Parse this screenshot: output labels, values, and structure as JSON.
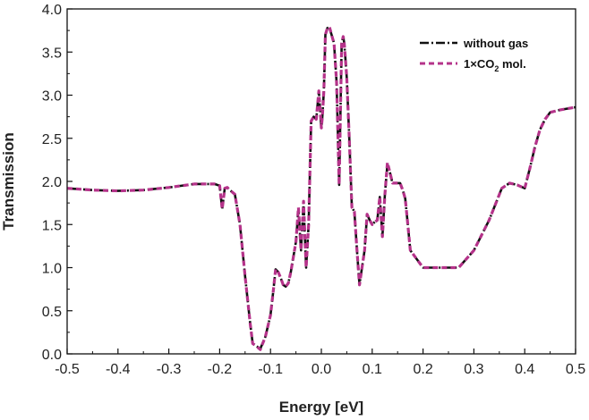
{
  "chart_data": {
    "type": "line",
    "title": "",
    "xlabel": "Energy [eV]",
    "ylabel": "Transmission",
    "xlim": [
      -0.5,
      0.5
    ],
    "ylim": [
      0.0,
      4.0
    ],
    "x_ticks": [
      "-0.5",
      "-0.4",
      "-0.3",
      "-0.2",
      "-0.1",
      "0.0",
      "0.1",
      "0.2",
      "0.3",
      "0.4",
      "0.5"
    ],
    "y_ticks": [
      "0.0",
      "0.5",
      "1.0",
      "1.5",
      "2.0",
      "2.5",
      "3.0",
      "3.5",
      "4.0"
    ],
    "grid": false,
    "legend_position": "top-right",
    "series": [
      {
        "name": "without gas",
        "legend_label": {
          "main": "without gas",
          "sub": "",
          "suffix": ""
        },
        "color": "#111111",
        "style": "dash-dot",
        "x": [
          -0.5,
          -0.45,
          -0.4,
          -0.35,
          -0.3,
          -0.25,
          -0.21,
          -0.2,
          -0.195,
          -0.19,
          -0.185,
          -0.18,
          -0.17,
          -0.16,
          -0.15,
          -0.14,
          -0.135,
          -0.13,
          -0.12,
          -0.11,
          -0.1,
          -0.095,
          -0.09,
          -0.085,
          -0.08,
          -0.075,
          -0.07,
          -0.065,
          -0.06,
          -0.05,
          -0.045,
          -0.04,
          -0.035,
          -0.03,
          -0.025,
          -0.02,
          -0.015,
          -0.01,
          -0.005,
          0.0,
          0.002,
          0.005,
          0.008,
          0.012,
          0.016,
          0.02,
          0.025,
          0.03,
          0.035,
          0.04,
          0.043,
          0.045,
          0.047,
          0.05,
          0.055,
          0.06,
          0.065,
          0.07,
          0.075,
          0.08,
          0.085,
          0.09,
          0.095,
          0.1,
          0.105,
          0.11,
          0.115,
          0.12,
          0.125,
          0.13,
          0.135,
          0.14,
          0.145,
          0.15,
          0.155,
          0.16,
          0.165,
          0.17,
          0.175,
          0.2,
          0.22,
          0.24,
          0.26,
          0.27,
          0.3,
          0.33,
          0.355,
          0.37,
          0.385,
          0.4,
          0.41,
          0.42,
          0.43,
          0.44,
          0.45,
          0.47,
          0.5
        ],
        "y": [
          1.92,
          1.9,
          1.89,
          1.9,
          1.93,
          1.97,
          1.97,
          1.95,
          1.68,
          1.92,
          1.93,
          1.9,
          1.85,
          1.5,
          0.9,
          0.35,
          0.12,
          0.1,
          0.06,
          0.2,
          0.45,
          0.7,
          0.98,
          0.95,
          0.88,
          0.8,
          0.78,
          0.82,
          0.95,
          1.3,
          1.68,
          1.2,
          1.75,
          1.0,
          1.5,
          2.7,
          2.75,
          2.72,
          3.05,
          2.62,
          2.75,
          3.05,
          3.7,
          3.78,
          3.78,
          3.7,
          3.6,
          3.15,
          1.96,
          3.6,
          3.68,
          3.6,
          3.45,
          3.2,
          2.5,
          1.7,
          1.65,
          1.2,
          0.8,
          1.0,
          1.2,
          1.62,
          1.55,
          1.5,
          1.53,
          1.55,
          1.82,
          1.36,
          1.85,
          2.2,
          2.1,
          1.98,
          1.98,
          1.98,
          1.98,
          1.9,
          1.8,
          1.5,
          1.2,
          1.0,
          1.0,
          1.0,
          1.0,
          1.0,
          1.2,
          1.55,
          1.92,
          1.98,
          1.96,
          1.92,
          2.15,
          2.4,
          2.6,
          2.72,
          2.8,
          2.83,
          2.86
        ]
      },
      {
        "name": "1×CO2 mol.",
        "legend_label": {
          "main": "1×CO",
          "sub": "2",
          "suffix": " mol."
        },
        "color": "#b5338a",
        "style": "dash",
        "x": [
          -0.5,
          -0.45,
          -0.4,
          -0.35,
          -0.3,
          -0.25,
          -0.21,
          -0.2,
          -0.195,
          -0.19,
          -0.185,
          -0.18,
          -0.17,
          -0.16,
          -0.15,
          -0.14,
          -0.135,
          -0.13,
          -0.12,
          -0.11,
          -0.1,
          -0.095,
          -0.09,
          -0.085,
          -0.08,
          -0.075,
          -0.07,
          -0.065,
          -0.06,
          -0.05,
          -0.045,
          -0.04,
          -0.035,
          -0.03,
          -0.025,
          -0.02,
          -0.015,
          -0.01,
          -0.005,
          0.0,
          0.002,
          0.005,
          0.008,
          0.012,
          0.016,
          0.02,
          0.025,
          0.03,
          0.035,
          0.04,
          0.043,
          0.045,
          0.047,
          0.05,
          0.055,
          0.06,
          0.065,
          0.07,
          0.075,
          0.08,
          0.085,
          0.09,
          0.095,
          0.1,
          0.105,
          0.11,
          0.115,
          0.12,
          0.125,
          0.13,
          0.135,
          0.14,
          0.145,
          0.15,
          0.155,
          0.16,
          0.165,
          0.17,
          0.175,
          0.2,
          0.22,
          0.24,
          0.26,
          0.27,
          0.3,
          0.33,
          0.355,
          0.37,
          0.385,
          0.4,
          0.41,
          0.42,
          0.43,
          0.44,
          0.45,
          0.47,
          0.5
        ],
        "y": [
          1.92,
          1.9,
          1.89,
          1.9,
          1.93,
          1.97,
          1.97,
          1.95,
          1.68,
          1.92,
          1.93,
          1.9,
          1.85,
          1.5,
          0.9,
          0.35,
          0.12,
          0.1,
          0.05,
          0.2,
          0.45,
          0.7,
          0.98,
          0.95,
          0.88,
          0.8,
          0.78,
          0.82,
          0.95,
          1.3,
          1.7,
          1.2,
          1.77,
          1.0,
          1.5,
          2.7,
          2.75,
          2.72,
          3.05,
          2.62,
          2.75,
          3.05,
          3.7,
          3.78,
          3.79,
          3.7,
          3.6,
          3.15,
          1.96,
          3.6,
          3.68,
          3.6,
          3.45,
          3.2,
          2.5,
          1.7,
          1.65,
          1.2,
          0.8,
          1.0,
          1.2,
          1.62,
          1.55,
          1.5,
          1.53,
          1.55,
          1.82,
          1.36,
          1.85,
          2.22,
          2.1,
          1.98,
          1.98,
          1.98,
          1.98,
          1.9,
          1.8,
          1.5,
          1.2,
          1.0,
          1.0,
          1.0,
          1.0,
          1.0,
          1.2,
          1.55,
          1.92,
          1.98,
          1.96,
          1.92,
          2.15,
          2.4,
          2.6,
          2.72,
          2.8,
          2.83,
          2.86
        ]
      }
    ]
  }
}
